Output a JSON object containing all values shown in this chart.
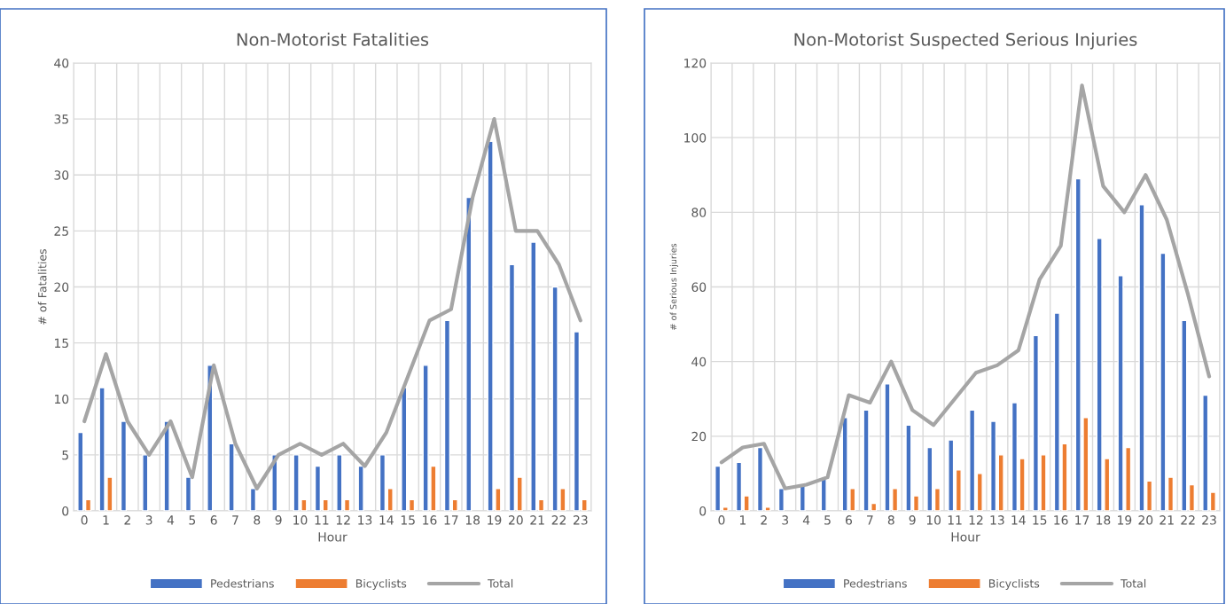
{
  "chart_data": [
    {
      "type": "bar",
      "title": "Non-Motorist Fatalities",
      "xlabel": "Hour",
      "ylabel": "# of Fatalities",
      "categories": [
        "0",
        "1",
        "2",
        "3",
        "4",
        "5",
        "6",
        "7",
        "8",
        "9",
        "10",
        "11",
        "12",
        "13",
        "14",
        "15",
        "16",
        "17",
        "18",
        "19",
        "20",
        "21",
        "22",
        "23"
      ],
      "series": [
        {
          "name": "Pedestrians",
          "color": "#4472c4",
          "values": [
            7,
            11,
            8,
            5,
            8,
            3,
            13,
            6,
            2,
            5,
            5,
            4,
            5,
            4,
            5,
            11,
            13,
            17,
            28,
            33,
            22,
            24,
            20,
            16
          ]
        },
        {
          "name": "Bicyclists",
          "color": "#ed7d31",
          "values": [
            1,
            3,
            null,
            null,
            null,
            null,
            null,
            null,
            null,
            null,
            1,
            1,
            1,
            null,
            2,
            1,
            4,
            1,
            null,
            2,
            3,
            1,
            2,
            1
          ]
        },
        {
          "name": "Total",
          "type": "line",
          "color": "#a5a5a5",
          "values": [
            8,
            14,
            8,
            5,
            8,
            3,
            13,
            6,
            2,
            5,
            6,
            5,
            6,
            4,
            7,
            12,
            17,
            18,
            28,
            35,
            25,
            25,
            22,
            17
          ]
        }
      ],
      "ylim": [
        0,
        40
      ],
      "yticks": [
        0,
        5,
        10,
        15,
        20,
        25,
        30,
        35,
        40
      ],
      "grid": true,
      "legend": "bottom",
      "marker": "none",
      "line_style": "solid"
    },
    {
      "type": "bar",
      "title": "Non-Motorist Suspected Serious Injuries",
      "xlabel": "Hour",
      "ylabel": "# of Serious Injuries",
      "categories": [
        "0",
        "1",
        "2",
        "3",
        "4",
        "5",
        "6",
        "7",
        "8",
        "9",
        "10",
        "11",
        "12",
        "13",
        "14",
        "15",
        "16",
        "17",
        "18",
        "19",
        "20",
        "21",
        "22",
        "23"
      ],
      "series": [
        {
          "name": "Pedestrians",
          "color": "#4472c4",
          "values": [
            12,
            13,
            17,
            6,
            7,
            9,
            25,
            27,
            34,
            23,
            17,
            19,
            27,
            24,
            29,
            47,
            53,
            89,
            73,
            63,
            82,
            69,
            51,
            31
          ]
        },
        {
          "name": "Bicyclists",
          "color": "#ed7d31",
          "values": [
            1,
            4,
            1,
            null,
            null,
            null,
            6,
            2,
            6,
            4,
            6,
            11,
            10,
            15,
            14,
            15,
            18,
            25,
            14,
            17,
            8,
            9,
            7,
            5
          ]
        },
        {
          "name": "Total",
          "type": "line",
          "color": "#a5a5a5",
          "values": [
            13,
            17,
            18,
            6,
            7,
            9,
            31,
            29,
            40,
            27,
            23,
            30,
            37,
            39,
            43,
            62,
            71,
            114,
            87,
            80,
            90,
            78,
            58,
            36
          ]
        }
      ],
      "ylim": [
        0,
        120
      ],
      "yticks": [
        0,
        20,
        40,
        60,
        80,
        100,
        120
      ],
      "grid": true,
      "legend": "bottom",
      "marker": "none",
      "line_style": "solid"
    }
  ]
}
